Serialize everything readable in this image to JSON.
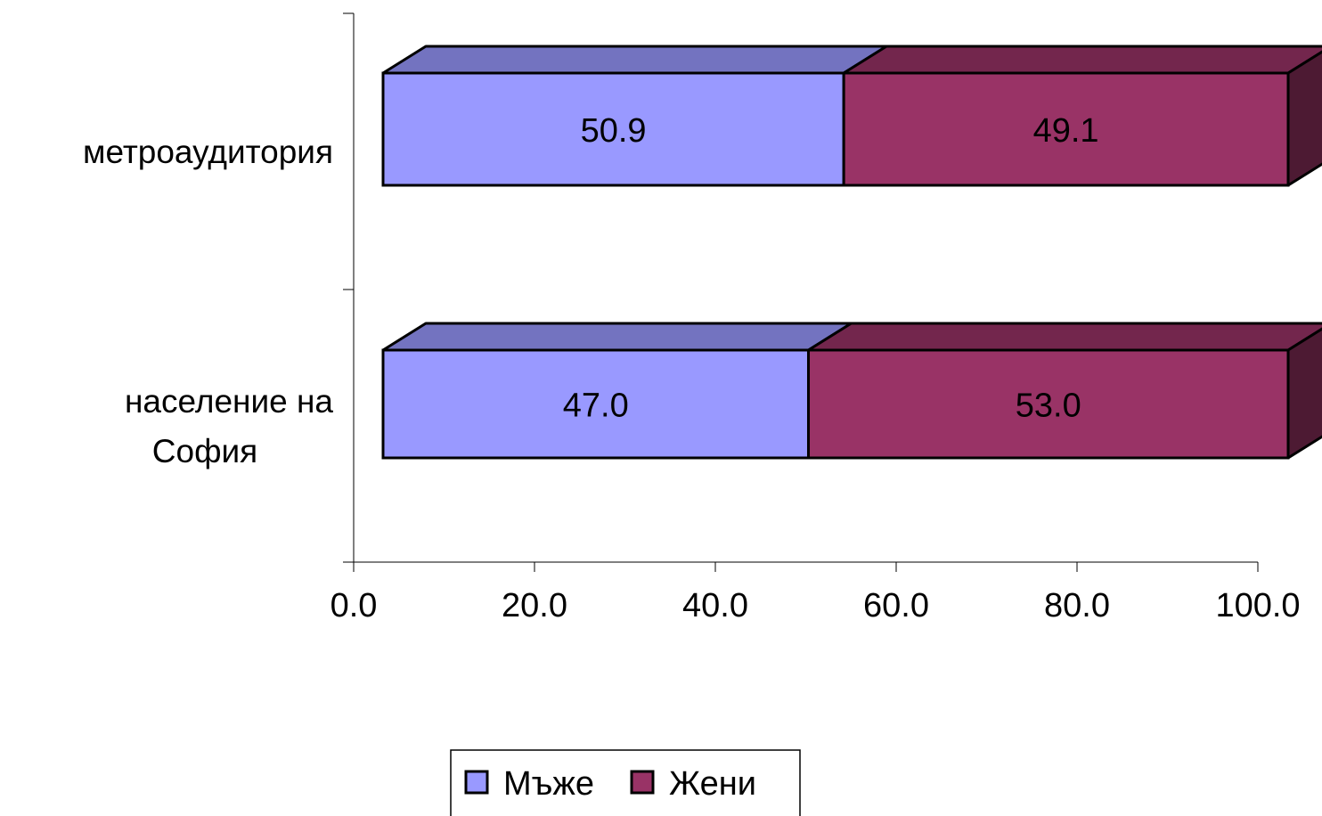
{
  "chart_data": {
    "type": "bar",
    "orientation": "horizontal",
    "stacked": true,
    "three_d": true,
    "categories": [
      [
        "метроаудитория"
      ],
      [
        "население на",
        "София"
      ]
    ],
    "series": [
      {
        "name": "Мъже",
        "values": [
          50.9,
          47.0
        ],
        "labels": [
          "50.9",
          "47.0"
        ],
        "color": "#9999ff",
        "top_color": "#7373c0",
        "side_color": "#4d4d80"
      },
      {
        "name": "Жени",
        "values": [
          49.1,
          53.0
        ],
        "labels": [
          "49.1",
          "53.0"
        ],
        "color": "#993366",
        "top_color": "#73264d",
        "side_color": "#4d1a33"
      }
    ],
    "x_ticks": [
      "0.0",
      "20.0",
      "40.0",
      "60.0",
      "80.0",
      "100.0"
    ],
    "xlim": [
      0,
      100
    ],
    "grid": false,
    "legend": "bottom"
  }
}
